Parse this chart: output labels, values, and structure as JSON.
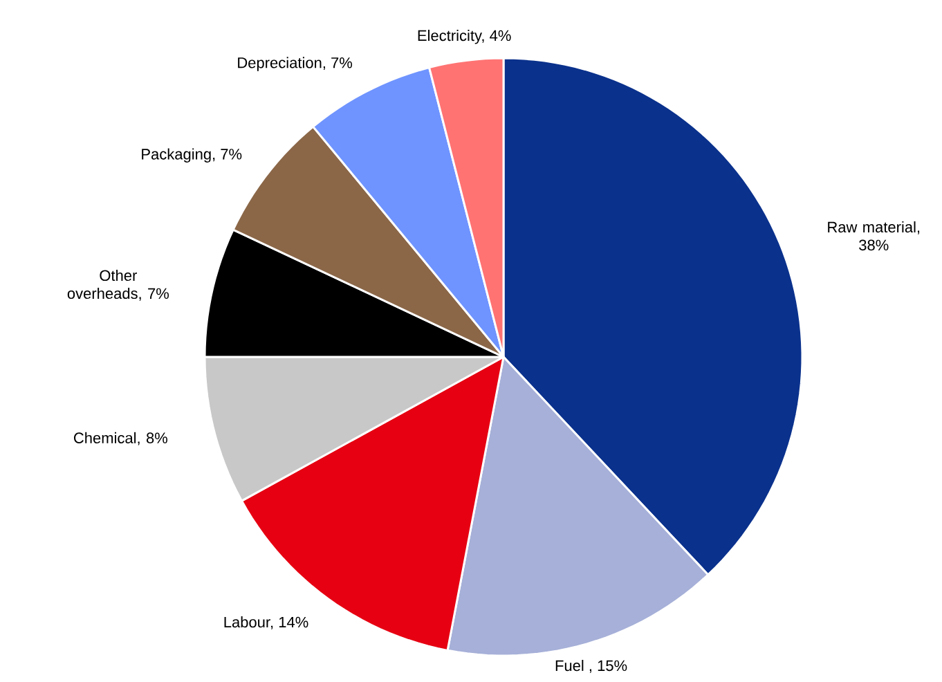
{
  "chart_data": {
    "type": "pie",
    "categories": [
      "Raw material, 38%",
      "Fuel , 15%",
      "Labour, 14%",
      "Chemical, 8%",
      "Other overheads, 7%",
      "Packaging, 7%",
      "Depreciation, 7%",
      "Electricity, 4%"
    ],
    "values": [
      38,
      15,
      14,
      8,
      7,
      7,
      7,
      4
    ],
    "colors": [
      "#0a318c",
      "#a6b0d8",
      "#e60012",
      "#c8c8c8",
      "#000000",
      "#8b6748",
      "#6f94ff",
      "#ff7373"
    ]
  }
}
